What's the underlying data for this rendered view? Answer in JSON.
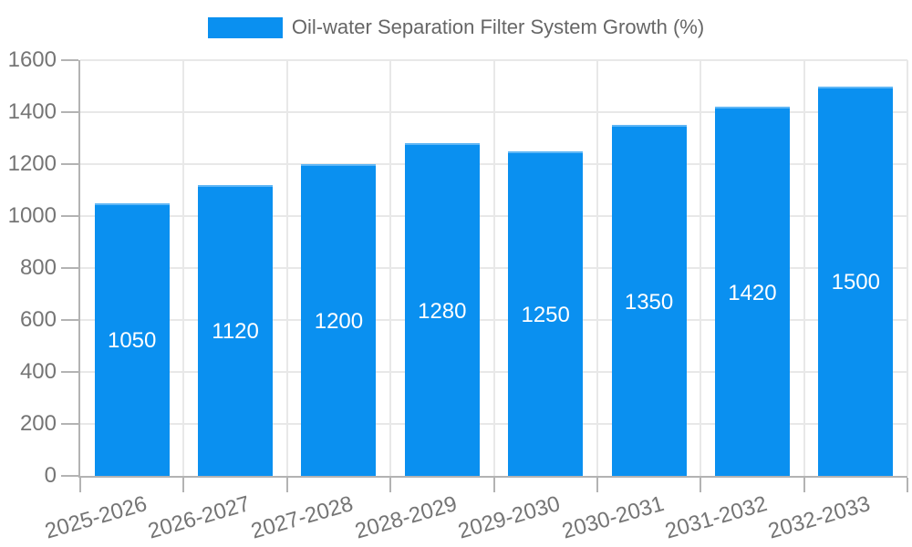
{
  "chart_data": {
    "type": "bar",
    "title": "",
    "legend_label": "Oil-water Separation Filter System Growth (%)",
    "legend_position": "top",
    "categories": [
      "2025-2026",
      "2026-2027",
      "2027-2028",
      "2028-2029",
      "2029-2030",
      "2030-2031",
      "2031-2032",
      "2032-2033"
    ],
    "values": [
      1050,
      1120,
      1200,
      1280,
      1250,
      1350,
      1420,
      1500
    ],
    "bar_value_labels": [
      "1050",
      "1120",
      "1200",
      "1280",
      "1250",
      "1350",
      "1420",
      "1500"
    ],
    "xlabel": "",
    "ylabel": "",
    "ylim": [
      0,
      1600
    ],
    "ytick_step": 200,
    "yticks": [
      0,
      200,
      400,
      600,
      800,
      1000,
      1200,
      1400,
      1600
    ],
    "grid": true,
    "colors": {
      "bar": "#0a90f0",
      "bar_value_text": "#ffffff",
      "axis_line": "#b3b3b3",
      "gridline": "#e8e8e8",
      "tick_text": "#757575",
      "legend_text": "#666666",
      "background": "#ffffff"
    }
  }
}
